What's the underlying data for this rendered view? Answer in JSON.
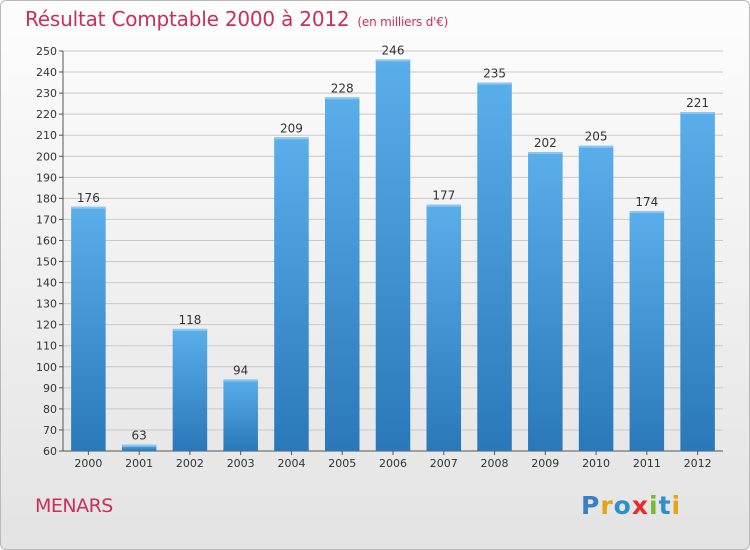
{
  "header": {
    "title": "Résultat Comptable 2000 à 2012",
    "unit": "(en milliers d'€)"
  },
  "commune": "MENARS",
  "logo": {
    "letters": [
      "P",
      "r",
      "o",
      "x",
      "i",
      "t",
      "i"
    ],
    "colors": [
      "#3a7fc4",
      "#e5a316",
      "#2e8fd0",
      "#e52d2d",
      "#7cb82f",
      "#2e8fd0",
      "#e5a316"
    ]
  },
  "chart_data": {
    "type": "bar",
    "title": "Résultat Comptable 2000 à 2012",
    "subtitle": "(en milliers d'€)",
    "xlabel": "",
    "ylabel": "",
    "categories": [
      "2000",
      "2001",
      "2002",
      "2003",
      "2004",
      "2005",
      "2006",
      "2007",
      "2008",
      "2009",
      "2010",
      "2011",
      "2012"
    ],
    "values": [
      176,
      63,
      118,
      94,
      209,
      228,
      246,
      177,
      235,
      202,
      205,
      174,
      221
    ],
    "ylim": [
      60,
      250
    ],
    "ytick_step": 10,
    "grid": true,
    "bar_color_top": "#5aaeea",
    "bar_color_bottom": "#2a78b9",
    "gridline_color": "#c8c8c8"
  }
}
